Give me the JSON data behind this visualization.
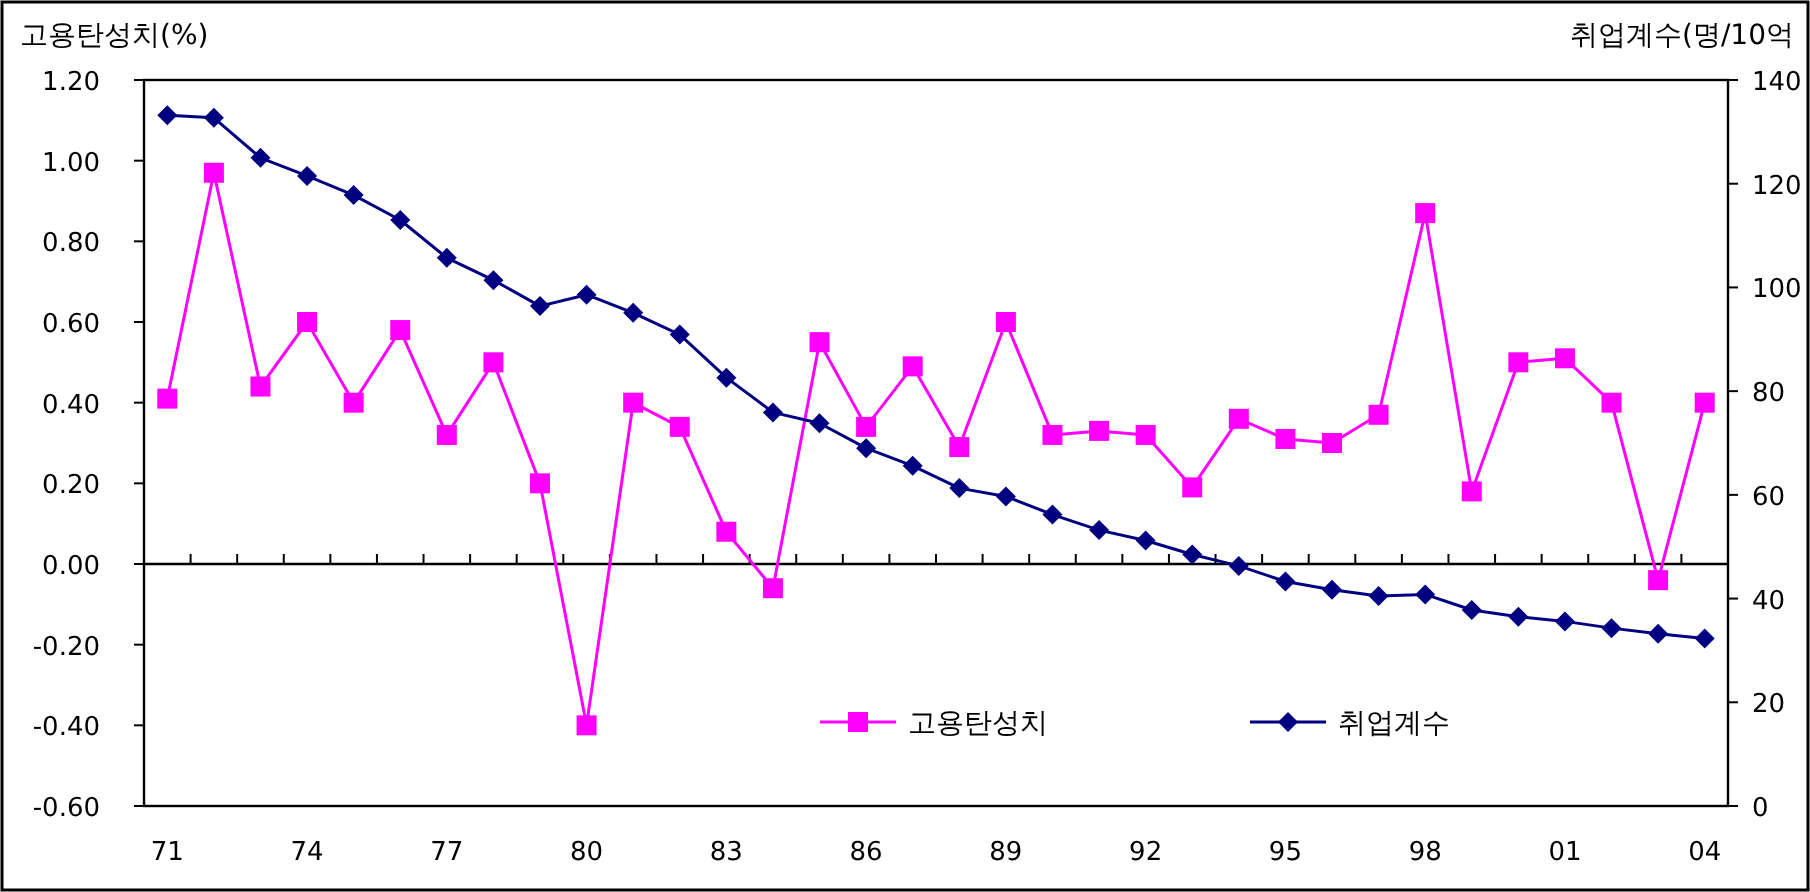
{
  "chart_data": {
    "type": "line",
    "ylabel": "고용탄성치(%)",
    "y2label": "취업계수(명/10억",
    "categories": [
      "71",
      null,
      null,
      "74",
      null,
      null,
      "77",
      null,
      null,
      "80",
      null,
      null,
      "83",
      null,
      null,
      "86",
      null,
      null,
      "89",
      null,
      null,
      "92",
      null,
      null,
      "95",
      null,
      null,
      "98",
      null,
      null,
      "01",
      null,
      null,
      "04"
    ],
    "series": [
      {
        "name": "고용탄성치",
        "color": "#ff00ff",
        "marker": "square",
        "values": [
          0.41,
          0.97,
          0.44,
          0.6,
          0.4,
          0.58,
          0.32,
          0.5,
          0.2,
          -0.4,
          0.4,
          0.34,
          0.08,
          -0.06,
          0.55,
          0.34,
          0.49,
          0.29,
          0.6,
          0.32,
          0.33,
          0.32,
          0.19,
          0.36,
          0.31,
          0.3,
          0.37,
          0.87,
          0.18,
          0.5,
          0.51,
          0.4,
          -0.04,
          0.4
        ]
      },
      {
        "name": "취업계수",
        "color": "#000080",
        "marker": "diamond",
        "axis": "y2",
        "values": [
          133.2,
          132.7,
          125,
          121.5,
          117.8,
          113,
          105.7,
          101.4,
          96.4,
          98.6,
          95.1,
          90.9,
          82.6,
          75.9,
          73.8,
          69,
          65.6,
          61.3,
          59.7,
          56.2,
          53.2,
          51.2,
          48.5,
          46.3,
          43.3,
          41.7,
          40.5,
          40.8,
          37.8,
          36.5,
          35.6,
          34.3,
          33.2,
          32.3
        ]
      }
    ],
    "ylim": [
      -0.6,
      1.2
    ],
    "yticks": [
      {
        "value": -0.6,
        "label": "-0.60"
      },
      {
        "value": -0.4,
        "label": "-0.40"
      },
      {
        "value": -0.2,
        "label": "-0.20"
      },
      {
        "value": 0,
        "label": "0.00"
      },
      {
        "value": 0.2,
        "label": "0.20"
      },
      {
        "value": 0.4,
        "label": "0.40"
      },
      {
        "value": 0.6,
        "label": "0.60"
      },
      {
        "value": 0.8,
        "label": "0.80"
      },
      {
        "value": 1.0,
        "label": "1.00"
      },
      {
        "value": 1.2,
        "label": "1.20"
      }
    ],
    "y2lim": [
      0,
      140
    ],
    "y2ticks": [
      0,
      20,
      40,
      60,
      80,
      100,
      120,
      140
    ],
    "legend": "bottom"
  }
}
